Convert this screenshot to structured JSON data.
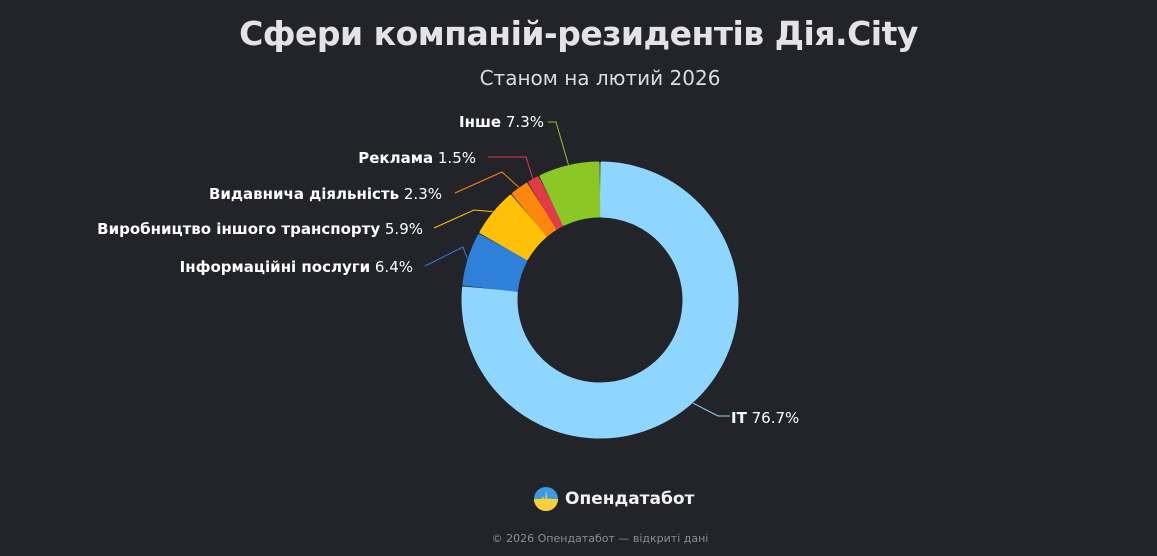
{
  "header": {
    "title": "Сфери компаній-резидентів Дія.City",
    "subtitle": "Станом на лютий 2026"
  },
  "chart_data": {
    "type": "pie",
    "variant": "donut",
    "title": "Сфери компаній-резидентів Дія.City",
    "subtitle": "Станом на лютий 2026",
    "unit": "%",
    "categories": [
      "IT",
      "Інформаційні послуги",
      "Виробництво іншого транспорту",
      "Видавнича діяльність",
      "Реклама",
      "Інше"
    ],
    "values": [
      76.7,
      6.4,
      5.9,
      2.3,
      1.5,
      7.3
    ],
    "colors": [
      "#8fd6ff",
      "#2f80d8",
      "#ffc107",
      "#fd860c",
      "#e03b47",
      "#8cc825"
    ],
    "labels": [
      {
        "name": "IT",
        "value": "76.7%"
      },
      {
        "name": "Інформаційні послуги",
        "value": "6.4%"
      },
      {
        "name": "Виробництво іншого транспорту",
        "value": "5.9%"
      },
      {
        "name": "Видавнича діяльність",
        "value": "2.3%"
      },
      {
        "name": "Реклама",
        "value": "1.5%"
      },
      {
        "name": "Інше",
        "value": "7.3%"
      }
    ],
    "legend": "none (data labels with leader lines)"
  },
  "branding": {
    "logo_text": "Опендатабот",
    "logo_icon": "opendatabot-logo-icon"
  },
  "footer": {
    "text": "© 2026 Опендатабот — відкриті дані"
  }
}
